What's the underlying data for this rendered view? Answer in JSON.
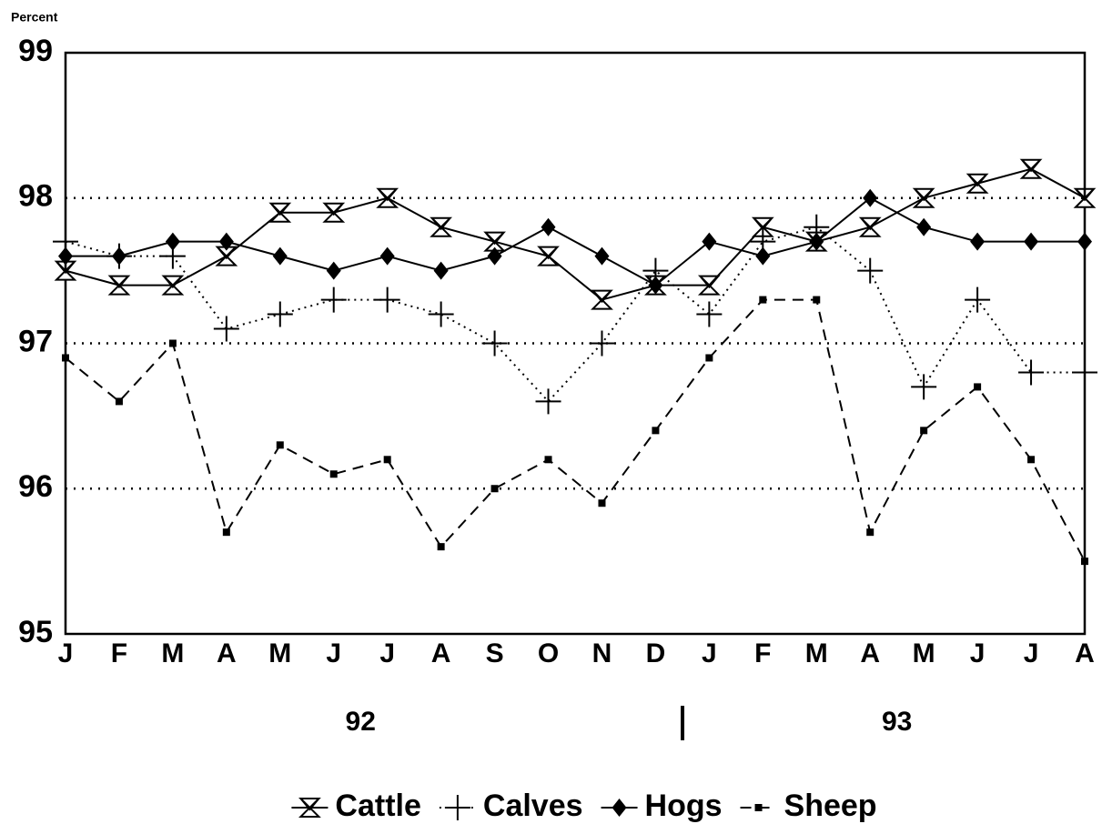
{
  "chart_data": {
    "type": "line",
    "y_label": "Percent",
    "categories": [
      "J",
      "F",
      "M",
      "A",
      "M",
      "J",
      "J",
      "A",
      "S",
      "O",
      "N",
      "D",
      "J",
      "F",
      "M",
      "A",
      "M",
      "J",
      "J",
      "A"
    ],
    "year_labels": [
      "92",
      "93"
    ],
    "ylim": [
      95,
      99
    ],
    "yticks": [
      95,
      96,
      97,
      98,
      99
    ],
    "grid": true,
    "legend": "bottom",
    "series": [
      {
        "name": "Cattle",
        "color": "#000000",
        "marker": "hourglass",
        "dash": "solid",
        "values": [
          97.5,
          97.4,
          97.4,
          97.6,
          97.9,
          97.9,
          98.0,
          97.8,
          97.7,
          97.6,
          97.3,
          97.4,
          97.4,
          97.8,
          97.7,
          97.8,
          98.0,
          98.1,
          98.2,
          98.0
        ]
      },
      {
        "name": "Calves",
        "color": "#000000",
        "marker": "plus",
        "dash": "dotted",
        "values": [
          97.7,
          97.6,
          97.6,
          97.1,
          97.2,
          97.3,
          97.3,
          97.2,
          97.0,
          96.6,
          97.0,
          97.5,
          97.2,
          97.7,
          97.8,
          97.5,
          96.7,
          97.3,
          96.8,
          96.8
        ]
      },
      {
        "name": "Hogs",
        "color": "#000000",
        "marker": "diamond",
        "dash": "solid",
        "values": [
          97.6,
          97.6,
          97.7,
          97.7,
          97.6,
          97.5,
          97.6,
          97.5,
          97.6,
          97.8,
          97.6,
          97.4,
          97.7,
          97.6,
          97.7,
          98.0,
          97.8,
          97.7,
          97.7,
          97.7
        ]
      },
      {
        "name": "Sheep",
        "color": "#000000",
        "marker": "square",
        "dash": "dashed",
        "values": [
          96.9,
          96.6,
          97.0,
          95.7,
          96.3,
          96.1,
          96.2,
          95.6,
          96.0,
          96.2,
          95.9,
          96.4,
          96.9,
          97.3,
          97.3,
          95.7,
          96.4,
          96.7,
          96.2,
          95.5
        ]
      }
    ]
  }
}
